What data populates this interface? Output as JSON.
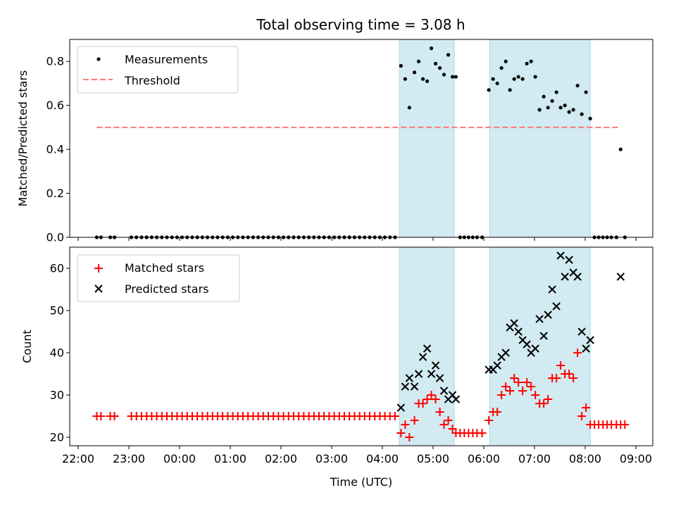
{
  "title": "Total observing time = 3.08 h",
  "colors": {
    "measurement": "#000000",
    "threshold": "#ff7777",
    "matched": "#ff0000",
    "predicted": "#000000",
    "span": "#add8e6"
  },
  "chart_data": [
    {
      "type": "scatter",
      "ylabel": "Matched/Predicted stars",
      "ylim": [
        0,
        0.9
      ],
      "yticks": [
        0.0,
        0.2,
        0.4,
        0.6,
        0.8
      ],
      "ytick_labels": [
        "0.0",
        "0.2",
        "0.4",
        "0.6",
        "0.8"
      ],
      "xlim": [
        "21:50",
        "09:20"
      ],
      "legend": [
        "Measurements",
        "Threshold"
      ],
      "legend_position": "top-left",
      "threshold": 0.5,
      "threshold_x": [
        "22:22",
        "08:42"
      ],
      "shaded_intervals": [
        [
          "04:20",
          "05:25"
        ],
        [
          "06:07",
          "08:06"
        ]
      ],
      "series": [
        {
          "name": "Measurements",
          "marker": "dot",
          "x": [
            "22:22",
            "22:27",
            "22:38",
            "22:43",
            "23:03",
            "23:09",
            "23:15",
            "23:21",
            "23:27",
            "23:33",
            "23:39",
            "23:45",
            "23:51",
            "23:57",
            "00:03",
            "00:09",
            "00:15",
            "00:21",
            "00:27",
            "00:33",
            "00:39",
            "00:45",
            "00:51",
            "00:57",
            "01:03",
            "01:09",
            "01:15",
            "01:21",
            "01:27",
            "01:33",
            "01:39",
            "01:45",
            "01:51",
            "01:57",
            "02:03",
            "02:09",
            "02:15",
            "02:21",
            "02:27",
            "02:33",
            "02:39",
            "02:45",
            "02:51",
            "02:57",
            "03:03",
            "03:09",
            "03:15",
            "03:21",
            "03:27",
            "03:33",
            "03:39",
            "03:45",
            "03:51",
            "03:57",
            "04:03",
            "04:09",
            "04:15",
            "04:22",
            "04:27",
            "04:32",
            "04:38",
            "04:43",
            "04:48",
            "04:53",
            "04:58",
            "05:03",
            "05:08",
            "05:13",
            "05:18",
            "05:23",
            "05:27",
            "05:32",
            "05:37",
            "05:42",
            "05:47",
            "05:52",
            "05:58",
            "06:06",
            "06:11",
            "06:16",
            "06:21",
            "06:26",
            "06:31",
            "06:36",
            "06:41",
            "06:46",
            "06:51",
            "06:56",
            "07:01",
            "07:06",
            "07:11",
            "07:16",
            "07:21",
            "07:26",
            "07:31",
            "07:36",
            "07:41",
            "07:46",
            "07:51",
            "07:56",
            "08:01",
            "08:06",
            "08:11",
            "08:16",
            "08:21",
            "08:26",
            "08:31",
            "08:37",
            "08:42",
            "08:47"
          ],
          "y": [
            0,
            0,
            0,
            0,
            0,
            0,
            0,
            0,
            0,
            0,
            0,
            0,
            0,
            0,
            0,
            0,
            0,
            0,
            0,
            0,
            0,
            0,
            0,
            0,
            0,
            0,
            0,
            0,
            0,
            0,
            0,
            0,
            0,
            0,
            0,
            0,
            0,
            0,
            0,
            0,
            0,
            0,
            0,
            0,
            0,
            0,
            0,
            0,
            0,
            0,
            0,
            0,
            0,
            0,
            0,
            0,
            0,
            0.78,
            0.72,
            0.59,
            0.75,
            0.8,
            0.72,
            0.71,
            0.86,
            0.79,
            0.77,
            0.74,
            0.83,
            0.73,
            0.73,
            0,
            0,
            0,
            0,
            0,
            0,
            0.67,
            0.72,
            0.7,
            0.77,
            0.8,
            0.67,
            0.72,
            0.73,
            0.72,
            0.79,
            0.8,
            0.73,
            0.58,
            0.64,
            0.59,
            0.62,
            0.66,
            0.59,
            0.6,
            0.57,
            0.58,
            0.69,
            0.56,
            0.66,
            0.54,
            0,
            0,
            0,
            0,
            0,
            0,
            0.4,
            0
          ]
        }
      ]
    },
    {
      "type": "scatter",
      "xlabel": "Time (UTC)",
      "ylabel": "Count",
      "ylim": [
        18,
        65
      ],
      "yticks": [
        20,
        30,
        40,
        50,
        60
      ],
      "ytick_labels": [
        "20",
        "30",
        "40",
        "50",
        "60"
      ],
      "xlim": [
        "21:50",
        "09:20"
      ],
      "xticks": [
        "22:00",
        "23:00",
        "00:00",
        "01:00",
        "02:00",
        "03:00",
        "04:00",
        "05:00",
        "06:00",
        "07:00",
        "08:00",
        "09:00"
      ],
      "legend": [
        "Matched stars",
        "Predicted stars"
      ],
      "legend_position": "top-left",
      "shaded_intervals": [
        [
          "04:20",
          "05:25"
        ],
        [
          "06:07",
          "08:06"
        ]
      ],
      "series": [
        {
          "name": "Matched stars",
          "marker": "plus",
          "x": [
            "22:22",
            "22:27",
            "22:38",
            "22:43",
            "23:03",
            "23:09",
            "23:15",
            "23:21",
            "23:27",
            "23:33",
            "23:39",
            "23:45",
            "23:51",
            "23:57",
            "00:03",
            "00:09",
            "00:15",
            "00:21",
            "00:27",
            "00:33",
            "00:39",
            "00:45",
            "00:51",
            "00:57",
            "01:03",
            "01:09",
            "01:15",
            "01:21",
            "01:27",
            "01:33",
            "01:39",
            "01:45",
            "01:51",
            "01:57",
            "02:03",
            "02:09",
            "02:15",
            "02:21",
            "02:27",
            "02:33",
            "02:39",
            "02:45",
            "02:51",
            "02:57",
            "03:03",
            "03:09",
            "03:15",
            "03:21",
            "03:27",
            "03:33",
            "03:39",
            "03:45",
            "03:51",
            "03:57",
            "04:03",
            "04:09",
            "04:15",
            "04:22",
            "04:27",
            "04:32",
            "04:38",
            "04:43",
            "04:48",
            "04:53",
            "04:58",
            "05:03",
            "05:08",
            "05:13",
            "05:18",
            "05:23",
            "05:27",
            "05:32",
            "05:37",
            "05:42",
            "05:47",
            "05:52",
            "05:58",
            "06:06",
            "06:11",
            "06:16",
            "06:21",
            "06:26",
            "06:31",
            "06:36",
            "06:41",
            "06:46",
            "06:51",
            "06:56",
            "07:01",
            "07:06",
            "07:11",
            "07:16",
            "07:21",
            "07:26",
            "07:31",
            "07:36",
            "07:41",
            "07:46",
            "07:51",
            "07:56",
            "08:01",
            "08:06",
            "08:11",
            "08:16",
            "08:21",
            "08:26",
            "08:31",
            "08:37",
            "08:42",
            "08:47"
          ],
          "y": [
            25,
            25,
            25,
            25,
            25,
            25,
            25,
            25,
            25,
            25,
            25,
            25,
            25,
            25,
            25,
            25,
            25,
            25,
            25,
            25,
            25,
            25,
            25,
            25,
            25,
            25,
            25,
            25,
            25,
            25,
            25,
            25,
            25,
            25,
            25,
            25,
            25,
            25,
            25,
            25,
            25,
            25,
            25,
            25,
            25,
            25,
            25,
            25,
            25,
            25,
            25,
            25,
            25,
            25,
            25,
            25,
            25,
            21,
            23,
            20,
            24,
            28,
            28,
            29,
            30,
            29,
            26,
            23,
            24,
            22,
            21,
            21,
            21,
            21,
            21,
            21,
            21,
            24,
            26,
            26,
            30,
            32,
            31,
            34,
            33,
            31,
            33,
            32,
            30,
            28,
            28,
            29,
            34,
            34,
            37,
            35,
            35,
            34,
            40,
            25,
            27,
            23,
            23,
            23,
            23,
            23,
            23,
            23,
            23,
            23
          ]
        },
        {
          "name": "Predicted stars",
          "marker": "x",
          "x": [
            "04:22",
            "04:27",
            "04:32",
            "04:38",
            "04:43",
            "04:48",
            "04:53",
            "04:58",
            "05:03",
            "05:08",
            "05:13",
            "05:18",
            "05:23",
            "05:27",
            "06:06",
            "06:11",
            "06:16",
            "06:21",
            "06:26",
            "06:31",
            "06:36",
            "06:41",
            "06:46",
            "06:51",
            "06:56",
            "07:01",
            "07:06",
            "07:11",
            "07:16",
            "07:21",
            "07:26",
            "07:31",
            "07:36",
            "07:41",
            "07:46",
            "07:51",
            "07:56",
            "08:01",
            "08:06",
            "08:42"
          ],
          "y": [
            27,
            32,
            34,
            32,
            35,
            39,
            41,
            35,
            37,
            34,
            31,
            29,
            30,
            29,
            36,
            36,
            37,
            39,
            40,
            46,
            47,
            45,
            43,
            42,
            40,
            41,
            48,
            44,
            49,
            55,
            51,
            63,
            58,
            62,
            59,
            58,
            45,
            41,
            43,
            58
          ]
        }
      ]
    }
  ]
}
